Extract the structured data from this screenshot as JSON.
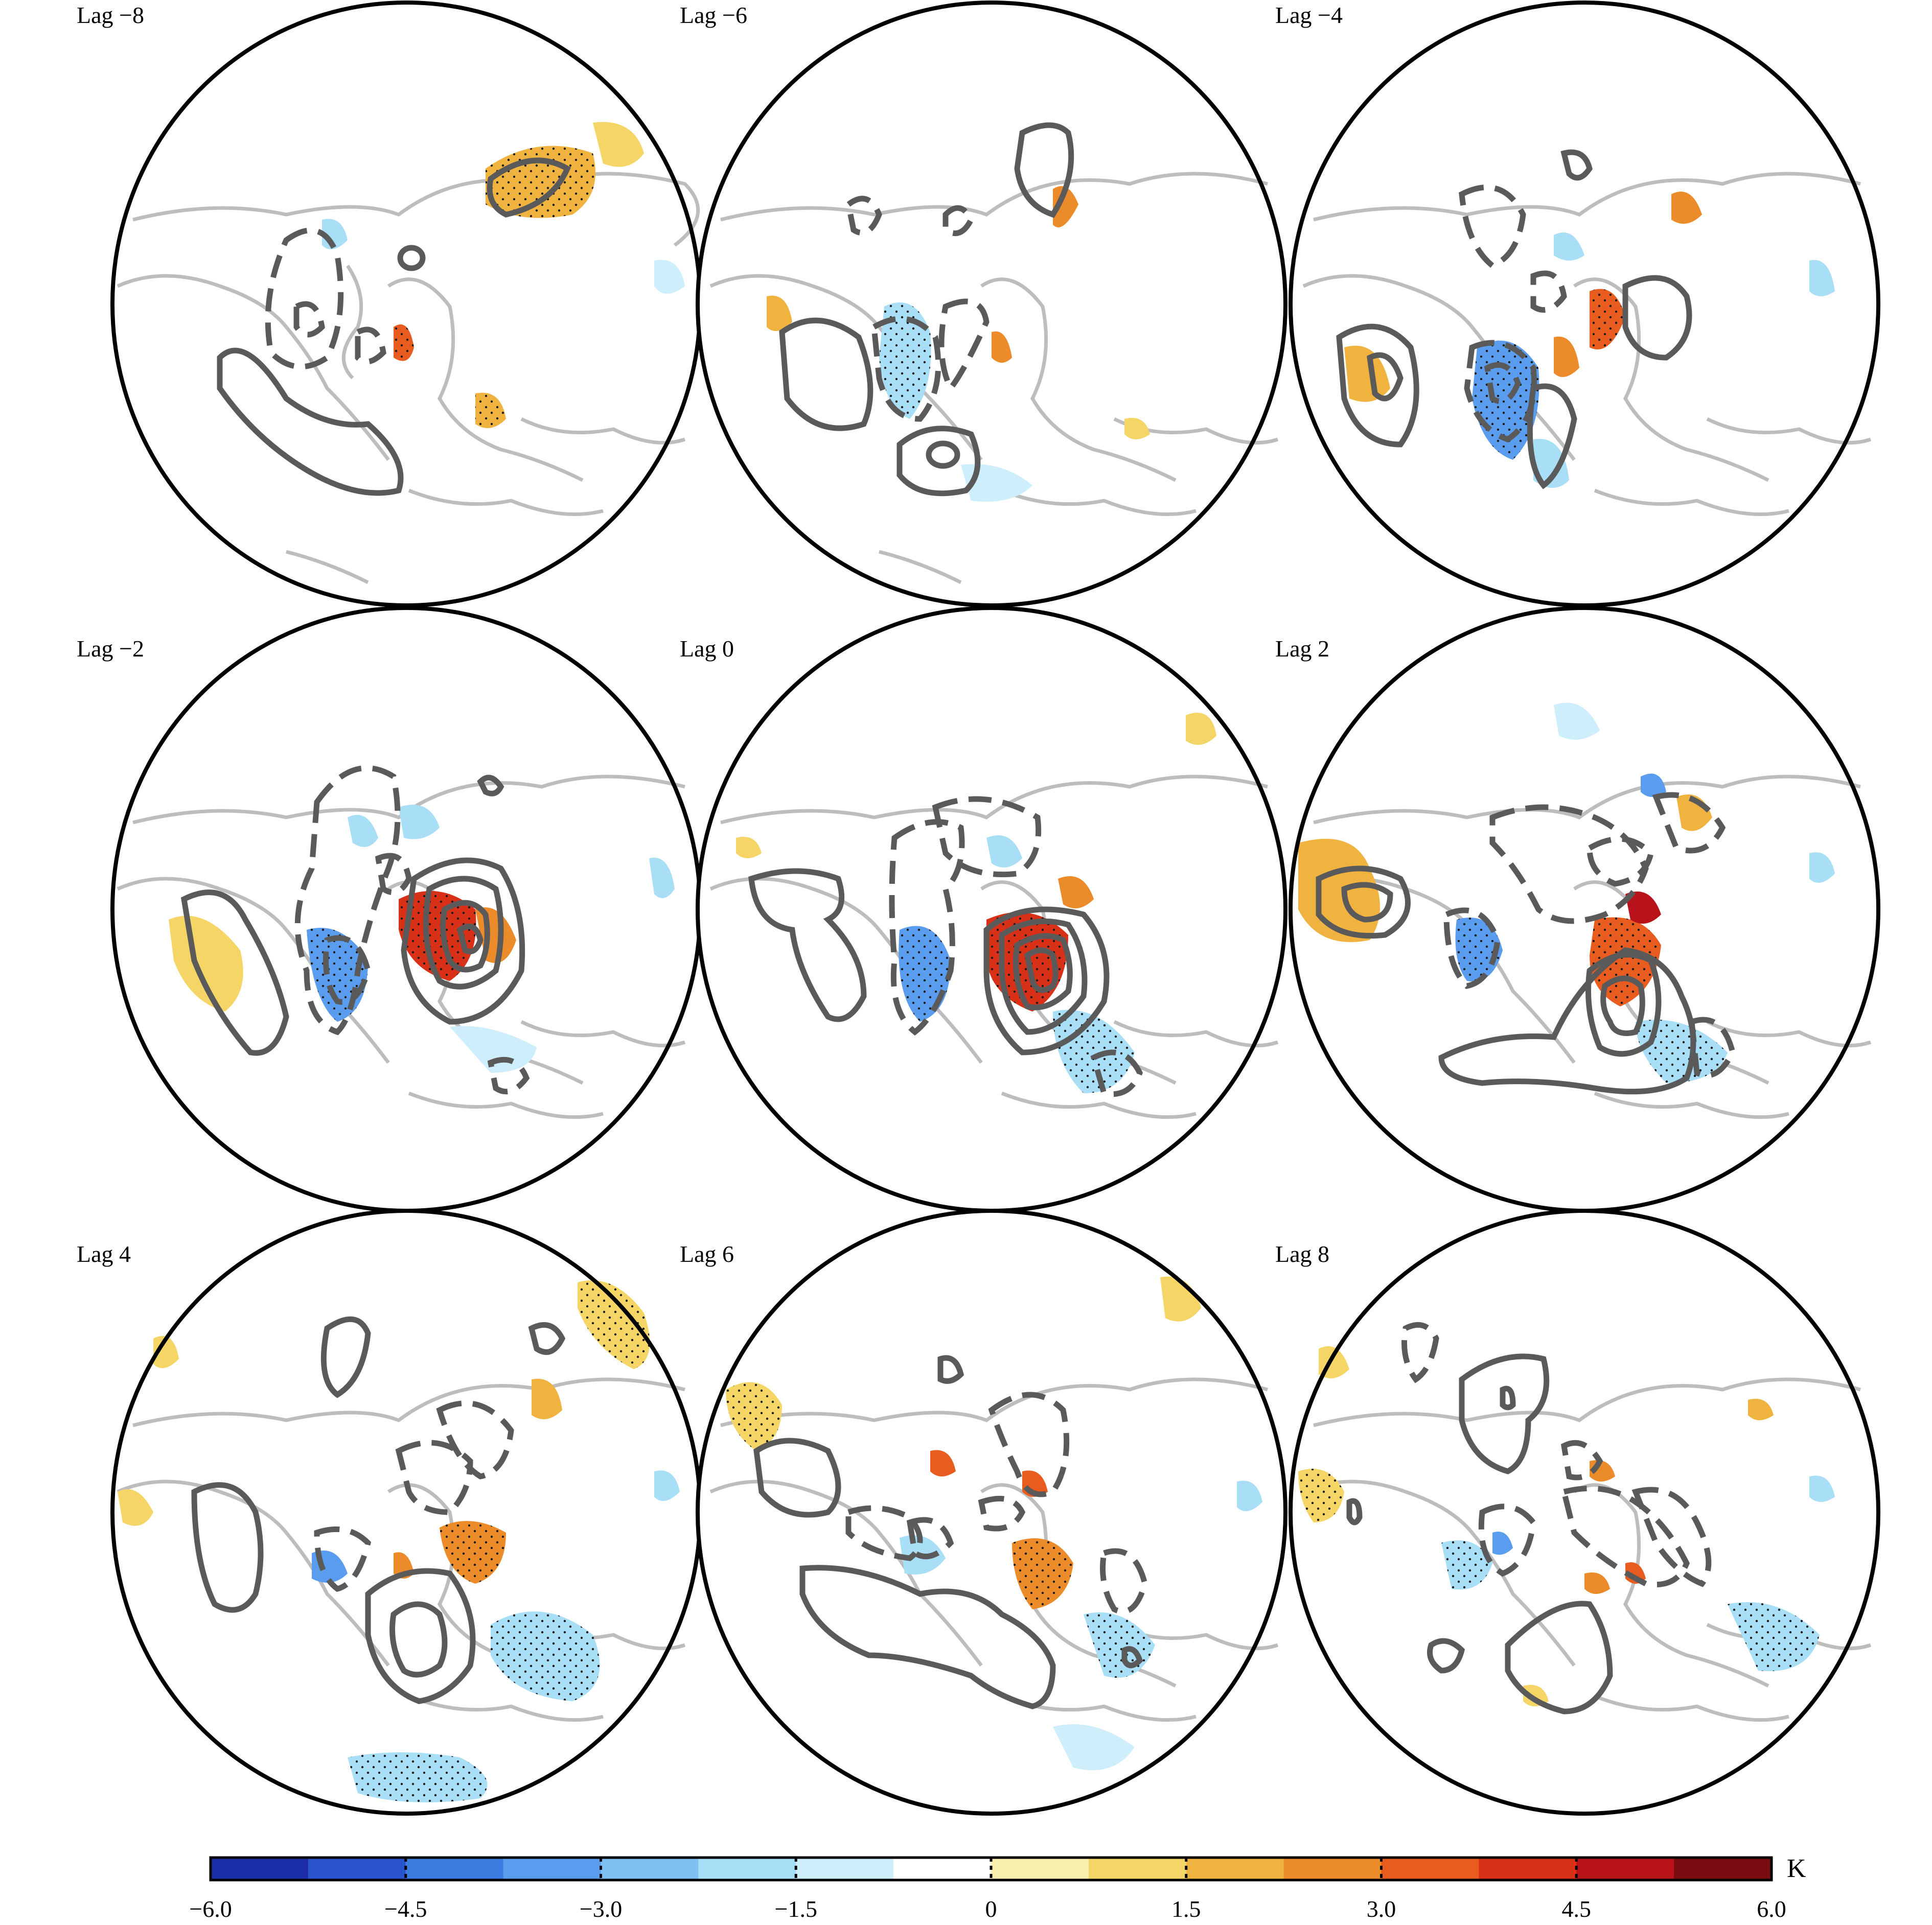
{
  "figure": {
    "panels": [
      {
        "label": "Lag −8"
      },
      {
        "label": "Lag −6"
      },
      {
        "label": "Lag −4"
      },
      {
        "label": "Lag −2"
      },
      {
        "label": "Lag 0"
      },
      {
        "label": "Lag 2"
      },
      {
        "label": "Lag 4"
      },
      {
        "label": "Lag 6"
      },
      {
        "label": "Lag 8"
      }
    ],
    "colorbar": {
      "ticks": [
        "−6.0",
        "−4.5",
        "−3.0",
        "−1.5",
        "0",
        "1.5",
        "3.0",
        "4.5",
        "6.0"
      ],
      "unit": "K",
      "range": [
        -6.0,
        6.0
      ],
      "colors": [
        "#1a2fa8",
        "#2a55cc",
        "#3e7be0",
        "#5a9ced",
        "#7fc0f2",
        "#a8def6",
        "#cdeefa",
        "#ffffff",
        "#fbefb0",
        "#f5d565",
        "#f0b340",
        "#ec8b2a",
        "#e85c1f",
        "#d93118",
        "#b8131a",
        "#7a0c12"
      ]
    }
  }
}
